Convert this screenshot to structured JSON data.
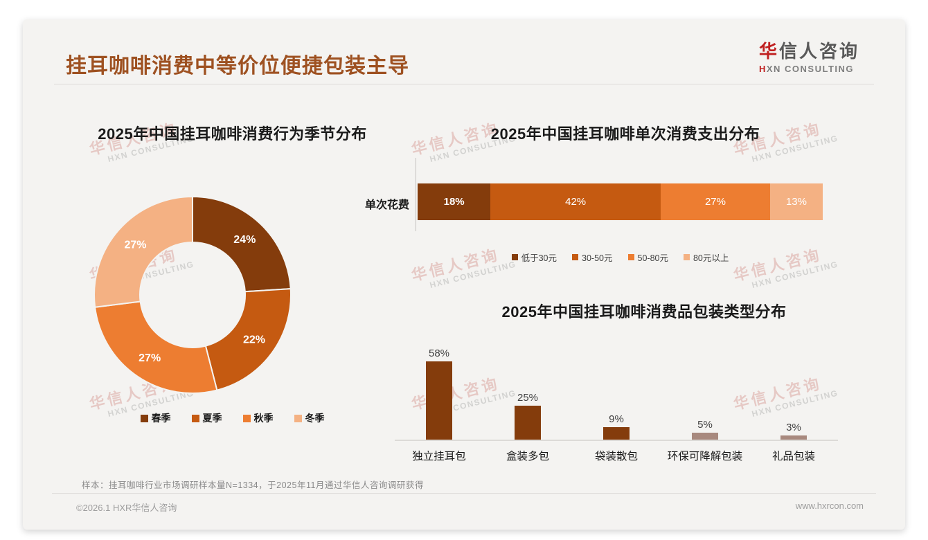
{
  "page": {
    "title": "挂耳咖啡消费中等价位便捷包装主导",
    "logo": {
      "cn_first": "华",
      "cn_rest": "信人咨询",
      "en_first": "H",
      "en_rest": "XN CONSULTING"
    },
    "watermark": {
      "cn": "华信人咨询",
      "en": "HXN CONSULTING"
    },
    "footer_note": "样本：挂耳咖啡行业市场调研样本量N=1334，于2025年11月通过华信人咨询调研获得",
    "copyright": "©2026.1 HXR华信人咨询",
    "website": "www.hxrcon.com"
  },
  "colors": {
    "title_accent": "#9e5121",
    "brand_red": "#c02020",
    "series": [
      "#843C0C",
      "#C55A11",
      "#ED7D31",
      "#F4B183"
    ],
    "bar_dark": "#843C0C",
    "bar_muted": "#A8897E"
  },
  "chart_data": [
    {
      "type": "pie",
      "subtype": "donut",
      "title": "2025年中国挂耳咖啡消费行为季节分布",
      "categories": [
        "春季",
        "夏季",
        "秋季",
        "冬季"
      ],
      "values": [
        24,
        22,
        27,
        27
      ],
      "labels": [
        "24%",
        "22%",
        "27%",
        "27%"
      ],
      "colors": [
        "#843C0C",
        "#C55A11",
        "#ED7D31",
        "#F4B183"
      ],
      "legend_position": "bottom",
      "start_angle_deg": 0,
      "direction": "clockwise"
    },
    {
      "type": "bar",
      "subtype": "horizontal-stacked",
      "title": "2025年中国挂耳咖啡单次消费支出分布",
      "category_axis_label": "单次花费",
      "series": [
        {
          "name": "低于30元",
          "value": 18,
          "label": "18%",
          "color": "#843C0C"
        },
        {
          "name": "30-50元",
          "value": 42,
          "label": "42%",
          "color": "#C55A11"
        },
        {
          "name": "50-80元",
          "value": 27,
          "label": "27%",
          "color": "#ED7D31"
        },
        {
          "name": "80元以上",
          "value": 13,
          "label": "13%",
          "color": "#F4B183"
        }
      ],
      "xlim": [
        0,
        100
      ],
      "legend_position": "bottom"
    },
    {
      "type": "bar",
      "subtype": "vertical",
      "title": "2025年中国挂耳咖啡消费品包装类型分布",
      "categories": [
        "独立挂耳包",
        "盒装多包",
        "袋装散包",
        "环保可降解包装",
        "礼品包装"
      ],
      "values": [
        58,
        25,
        9,
        5,
        3
      ],
      "labels": [
        "58%",
        "25%",
        "9%",
        "5%",
        "3%"
      ],
      "colors": [
        "#843C0C",
        "#843C0C",
        "#843C0C",
        "#A8897E",
        "#A8897E"
      ],
      "ylim": [
        0,
        65
      ],
      "grid": false
    }
  ]
}
